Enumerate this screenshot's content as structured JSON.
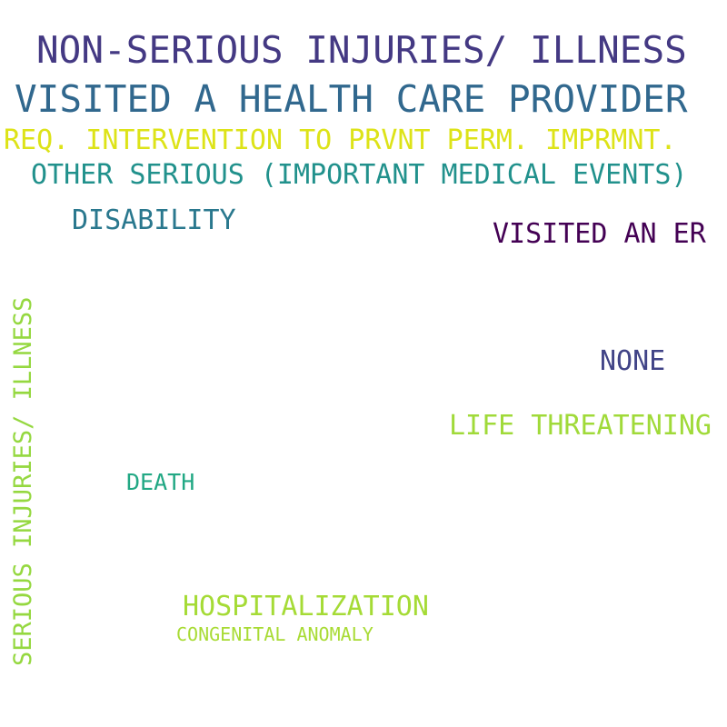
{
  "words": [
    {
      "key": "non_serious_illness",
      "text": "NON-SERIOUS INJURIES/ ILLNESS",
      "color": "#443983"
    },
    {
      "key": "visited_hcp",
      "text": "VISITED A HEALTH CARE PROVIDER",
      "color": "#31688e"
    },
    {
      "key": "req_intervention",
      "text": "REQ. INTERVENTION TO PRVNT PERM. IMPRMNT.",
      "color": "#dde318"
    },
    {
      "key": "other_serious",
      "text": "OTHER SERIOUS (IMPORTANT MEDICAL EVENTS)",
      "color": "#21918c"
    },
    {
      "key": "disability",
      "text": "DISABILITY",
      "color": "#2a788e"
    },
    {
      "key": "visited_er",
      "text": "VISITED AN ER",
      "color": "#440154"
    },
    {
      "key": "serious_illness",
      "text": "SERIOUS INJURIES/ ILLNESS",
      "color": "#95d840"
    },
    {
      "key": "none",
      "text": "NONE",
      "color": "#414487"
    },
    {
      "key": "life_threatening",
      "text": "LIFE THREATENING",
      "color": "#a0da39"
    },
    {
      "key": "death",
      "text": "DEATH",
      "color": "#22a884"
    },
    {
      "key": "hospitalization",
      "text": "HOSPITALIZATION",
      "color": "#a5db36"
    },
    {
      "key": "congenital_anomaly",
      "text": "CONGENITAL ANOMALY",
      "color": "#a8db34"
    }
  ]
}
